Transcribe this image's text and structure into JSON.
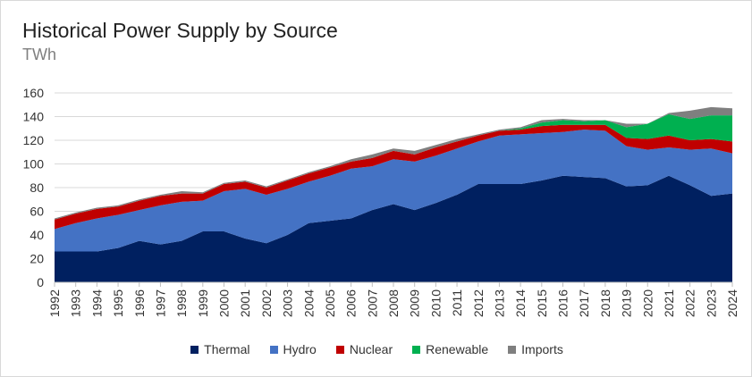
{
  "title": "Historical Power Supply by Source",
  "subtitle": "TWh",
  "chart_data": {
    "type": "area",
    "stacked": true,
    "title": "Historical Power Supply by Source",
    "ylabel": "TWh",
    "ylim": [
      0,
      160
    ],
    "yticks": [
      0,
      20,
      40,
      60,
      80,
      100,
      120,
      140,
      160
    ],
    "grid": true,
    "legend_position": "bottom",
    "x": [
      1992,
      1993,
      1994,
      1995,
      1996,
      1997,
      1998,
      1999,
      2000,
      2001,
      2002,
      2003,
      2004,
      2005,
      2006,
      2007,
      2008,
      2009,
      2010,
      2011,
      2012,
      2013,
      2014,
      2015,
      2016,
      2017,
      2018,
      2019,
      2020,
      2021,
      2022,
      2023,
      2024
    ],
    "series": [
      {
        "name": "Thermal",
        "color": "#002060",
        "values": [
          26,
          26,
          26,
          29,
          35,
          32,
          35,
          43,
          43,
          37,
          33,
          40,
          50,
          52,
          54,
          61,
          66,
          61,
          67,
          74,
          83,
          83,
          83,
          86,
          90,
          89,
          88,
          81,
          82,
          90,
          82,
          73,
          75
        ]
      },
      {
        "name": "Hydro",
        "color": "#4472c4",
        "values": [
          19,
          24,
          28,
          28,
          26,
          33,
          33,
          26,
          34,
          42,
          41,
          39,
          35,
          38,
          42,
          37,
          38,
          41,
          40,
          39,
          36,
          41,
          42,
          40,
          37,
          40,
          40,
          34,
          30,
          24,
          30,
          40,
          34
        ]
      },
      {
        "name": "Nuclear",
        "color": "#c00000",
        "values": [
          8,
          8,
          8,
          7,
          8,
          8,
          7,
          6,
          6,
          6,
          6,
          7,
          7,
          7,
          6,
          7,
          7,
          6,
          7,
          6,
          5,
          4,
          4,
          6,
          6,
          4,
          5,
          7,
          9,
          10,
          8,
          8,
          10
        ]
      },
      {
        "name": "Renewable",
        "color": "#00b050",
        "values": [
          0,
          0,
          0,
          0,
          0,
          0,
          0,
          0,
          0,
          0,
          0,
          0,
          0,
          0,
          0,
          0,
          0,
          0,
          0,
          0,
          0,
          0,
          1,
          3,
          4,
          3,
          4,
          9,
          13,
          18,
          18,
          20,
          22
        ]
      },
      {
        "name": "Imports",
        "color": "#7f7f7f",
        "values": [
          1,
          1,
          1,
          1,
          1,
          1,
          2,
          1,
          1,
          1,
          1,
          1,
          1,
          1,
          2,
          3,
          2,
          3,
          2,
          2,
          1,
          1,
          1,
          2,
          1,
          1,
          0,
          3,
          0,
          1,
          7,
          7,
          6
        ]
      }
    ]
  }
}
